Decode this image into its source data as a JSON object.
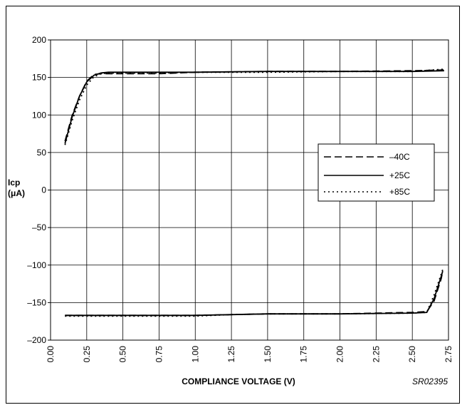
{
  "chart_data": {
    "type": "line",
    "xlabel": "COMPLIANCE VOLTAGE (V)",
    "ylabel_line1": "Icp",
    "ylabel_line2": "(μA)",
    "figure_code": "SR02395",
    "xlim": [
      0.0,
      2.75
    ],
    "ylim": [
      -200,
      200
    ],
    "x_ticks": [
      "0.00",
      "0.25",
      "0.50",
      "0.75",
      "1.00",
      "1.25",
      "1.50",
      "1.75",
      "2.00",
      "2.25",
      "2.50",
      "2.75"
    ],
    "y_ticks": [
      "200",
      "150",
      "100",
      "50",
      "0",
      "–50",
      "–100",
      "–150",
      "–200"
    ],
    "grid": true,
    "legend_position": "right",
    "series": [
      {
        "name": "–40C",
        "style": "dashed",
        "upper": [
          [
            0.1,
            65
          ],
          [
            0.15,
            100
          ],
          [
            0.2,
            125
          ],
          [
            0.25,
            145
          ],
          [
            0.3,
            154
          ],
          [
            0.35,
            155
          ],
          [
            0.5,
            155
          ],
          [
            0.75,
            155
          ],
          [
            1.0,
            157
          ],
          [
            1.5,
            158
          ],
          [
            2.0,
            158
          ],
          [
            2.5,
            159
          ],
          [
            2.72,
            160
          ]
        ],
        "lower": [
          [
            0.1,
            -167
          ],
          [
            1.0,
            -167
          ],
          [
            1.5,
            -165
          ],
          [
            2.0,
            -165
          ],
          [
            2.5,
            -163
          ],
          [
            2.6,
            -162
          ],
          [
            2.65,
            -148
          ],
          [
            2.7,
            -118
          ],
          [
            2.71,
            -108
          ]
        ]
      },
      {
        "name": "+25C",
        "style": "solid",
        "upper": [
          [
            0.1,
            62
          ],
          [
            0.15,
            98
          ],
          [
            0.2,
            125
          ],
          [
            0.25,
            144
          ],
          [
            0.3,
            153
          ],
          [
            0.35,
            156
          ],
          [
            0.4,
            157
          ],
          [
            0.75,
            157
          ],
          [
            1.0,
            157
          ],
          [
            1.5,
            158
          ],
          [
            2.0,
            158
          ],
          [
            2.5,
            158
          ],
          [
            2.72,
            159
          ]
        ],
        "lower": [
          [
            0.1,
            -167
          ],
          [
            1.0,
            -167
          ],
          [
            1.5,
            -165
          ],
          [
            2.0,
            -165
          ],
          [
            2.5,
            -164
          ],
          [
            2.6,
            -163
          ],
          [
            2.65,
            -145
          ],
          [
            2.7,
            -115
          ],
          [
            2.71,
            -108
          ]
        ]
      },
      {
        "name": "+85C",
        "style": "dotted",
        "upper": [
          [
            0.1,
            60
          ],
          [
            0.15,
            93
          ],
          [
            0.2,
            120
          ],
          [
            0.25,
            140
          ],
          [
            0.3,
            151
          ],
          [
            0.35,
            155
          ],
          [
            0.4,
            156
          ],
          [
            0.75,
            156
          ],
          [
            1.0,
            157
          ],
          [
            1.5,
            157
          ],
          [
            2.0,
            158
          ],
          [
            2.5,
            158
          ],
          [
            2.72,
            161
          ]
        ],
        "lower": [
          [
            0.1,
            -168
          ],
          [
            1.0,
            -168
          ],
          [
            1.25,
            -166
          ],
          [
            1.5,
            -165
          ],
          [
            2.0,
            -165
          ],
          [
            2.5,
            -164
          ],
          [
            2.6,
            -163
          ],
          [
            2.65,
            -140
          ],
          [
            2.7,
            -112
          ],
          [
            2.71,
            -106
          ]
        ]
      }
    ]
  }
}
